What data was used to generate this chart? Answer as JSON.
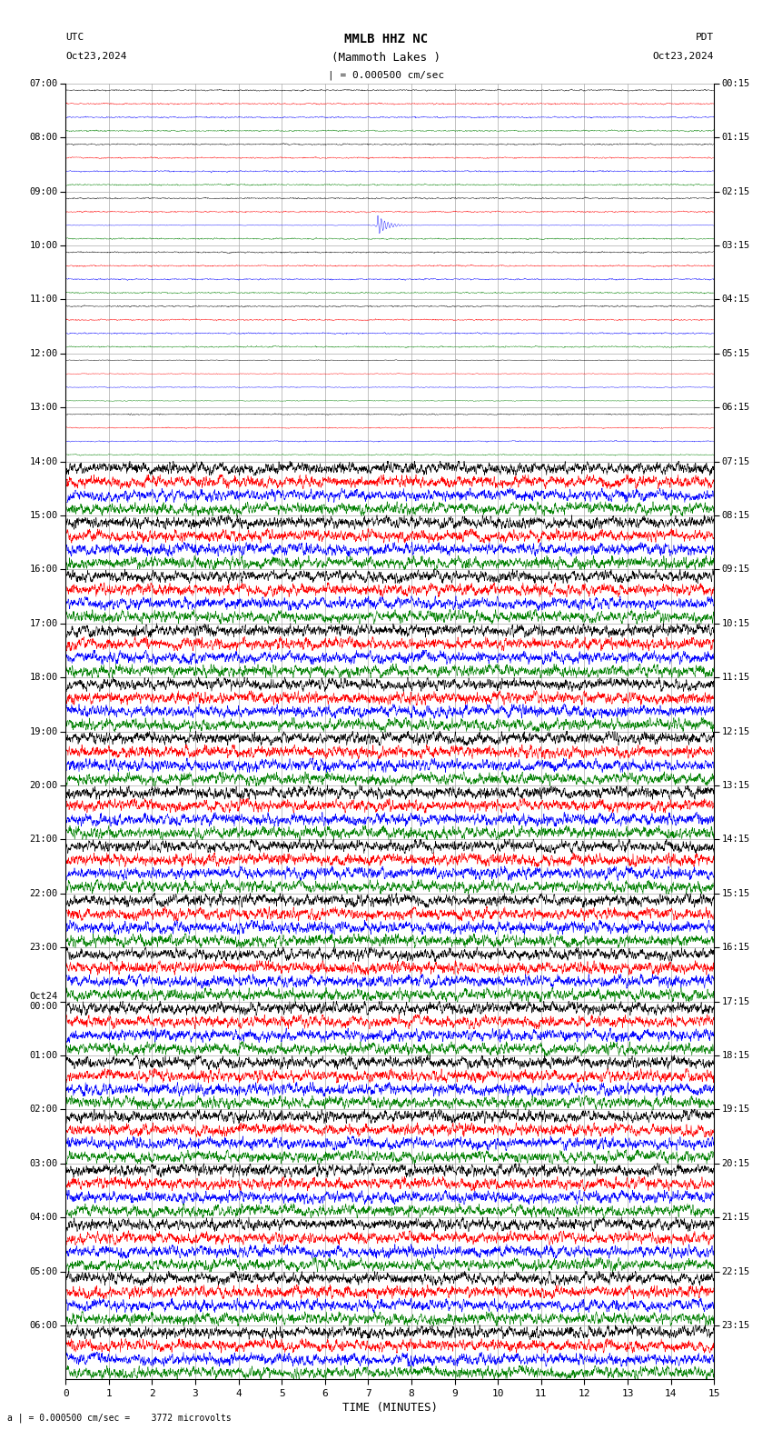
{
  "title_line1": "MMLB HHZ NC",
  "title_line2": "(Mammoth Lakes )",
  "scale_label": "| = 0.000500 cm/sec",
  "utc_label": "UTC",
  "utc_date": "Oct23,2024",
  "pdt_label": "PDT",
  "pdt_date": "Oct23,2024",
  "bottom_label": "a | = 0.000500 cm/sec =    3772 microvolts",
  "xlabel": "TIME (MINUTES)",
  "left_times": [
    "07:00",
    "08:00",
    "09:00",
    "10:00",
    "11:00",
    "12:00",
    "13:00",
    "14:00",
    "15:00",
    "16:00",
    "17:00",
    "18:00",
    "19:00",
    "20:00",
    "21:00",
    "22:00",
    "23:00",
    "Oct24\n00:00",
    "01:00",
    "02:00",
    "03:00",
    "04:00",
    "05:00",
    "06:00"
  ],
  "right_times": [
    "00:15",
    "01:15",
    "02:15",
    "03:15",
    "04:15",
    "05:15",
    "06:15",
    "07:15",
    "08:15",
    "09:15",
    "10:15",
    "11:15",
    "12:15",
    "13:15",
    "14:15",
    "15:15",
    "16:15",
    "17:15",
    "18:15",
    "19:15",
    "20:15",
    "21:15",
    "22:15",
    "23:15"
  ],
  "n_rows": 24,
  "n_traces_per_row": 4,
  "colors": [
    "black",
    "red",
    "blue",
    "green"
  ],
  "bg_color": "white",
  "grid_color": "#aaaaaa",
  "figsize": [
    8.5,
    15.84
  ],
  "dpi": 100,
  "minutes": 15,
  "noise_profile": [
    0.008,
    0.008,
    0.008,
    0.008,
    0.008,
    0.035,
    0.05,
    0.35,
    0.85,
    0.85,
    0.85,
    0.85,
    0.85,
    0.85,
    0.85,
    0.85,
    0.75,
    0.55,
    0.3,
    0.3,
    0.4,
    0.4,
    0.25,
    0.2
  ],
  "quake_row": 2,
  "quake_trace": 2,
  "quake_minute": 7.2,
  "small_quake_row": 6,
  "small_quake_trace": 0,
  "small_quake_minute": 1.5
}
